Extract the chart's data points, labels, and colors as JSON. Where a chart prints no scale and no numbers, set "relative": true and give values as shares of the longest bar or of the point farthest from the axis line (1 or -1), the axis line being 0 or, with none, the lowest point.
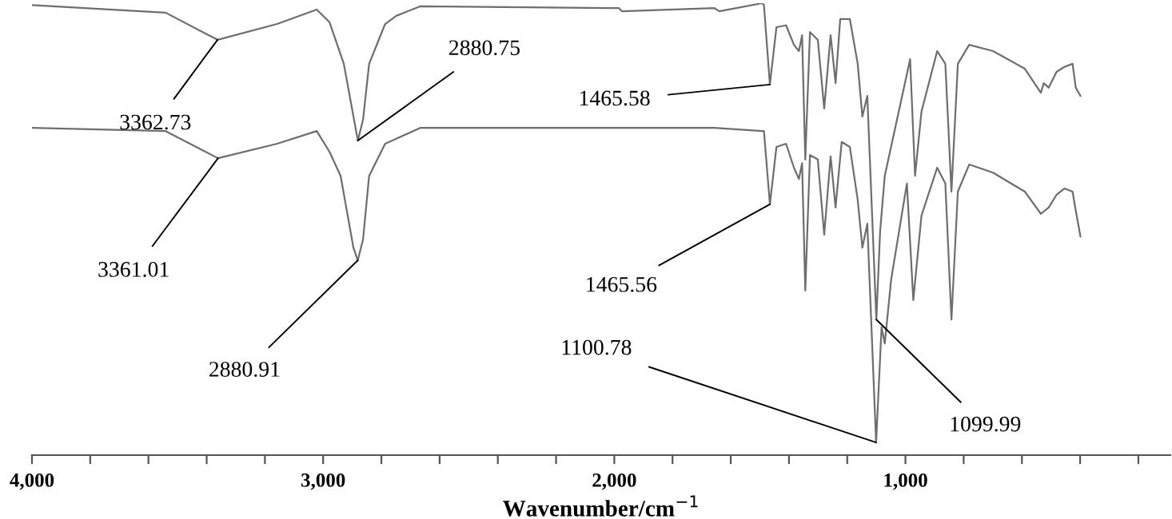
{
  "chart_data": {
    "type": "line",
    "relative": true,
    "xlabel": "Wavenumber/cm$^{−1}$",
    "x": [
      4000,
      3541,
      3362.73,
      3158,
      3022,
      2978,
      2929,
      2880.75,
      2863,
      2842,
      2787,
      2749,
      2667,
      1984,
      1973,
      1656,
      1639,
      1492,
      1486,
      1465.58,
      1443,
      1410,
      1383,
      1366,
      1355,
      1344,
      1328,
      1301,
      1279,
      1257,
      1240,
      1224,
      1191,
      1164,
      1148,
      1131,
      1099.99,
      1087,
      1071,
      984,
      967,
      945,
      891,
      863,
      842,
      820,
      781,
      699,
      590,
      535,
      525,
      508,
      481,
      454,
      426,
      415,
      399
    ],
    "series": [
      {
        "color": "#6e6e6e",
        "values": [
          0.996,
          0.979,
          0.919,
          0.954,
          0.986,
          0.958,
          0.866,
          0.696,
          0.742,
          0.866,
          0.954,
          0.972,
          0.993,
          0.989,
          0.982,
          0.989,
          0.982,
          1.0,
          0.996,
          0.82,
          0.947,
          0.951,
          0.908,
          0.894,
          0.929,
          0.654,
          0.936,
          0.919,
          0.767,
          0.929,
          0.823,
          0.965,
          0.965,
          0.866,
          0.749,
          0.795,
          0.3,
          0.495,
          0.618,
          0.876,
          0.618,
          0.76,
          0.894,
          0.866,
          0.583,
          0.866,
          0.908,
          0.894,
          0.855,
          0.802,
          0.823,
          0.813,
          0.848,
          0.859,
          0.866,
          0.813,
          0.795
        ]
      },
      {
        "color": "#6e6e6e",
        "x": [
          4000,
          3541,
          3361.01,
          3158,
          3022,
          2978,
          2940,
          2896,
          2880.91,
          2863,
          2842,
          2787,
          2749,
          2667,
          1984,
          1656,
          1492,
          1486,
          1465.56,
          1443,
          1410,
          1383,
          1366,
          1355,
          1344,
          1328,
          1301,
          1279,
          1257,
          1240,
          1219,
          1191,
          1164,
          1148,
          1131,
          1100.78,
          1082,
          1071,
          1049,
          995,
          973,
          945,
          891,
          863,
          842,
          820,
          781,
          699,
          590,
          535,
          508,
          481,
          454,
          426,
          415,
          399
        ],
        "values": [
          0.724,
          0.717,
          0.657,
          0.689,
          0.717,
          0.671,
          0.618,
          0.459,
          0.431,
          0.477,
          0.618,
          0.689,
          0.7,
          0.724,
          0.724,
          0.724,
          0.717,
          0.717,
          0.555,
          0.682,
          0.689,
          0.636,
          0.611,
          0.646,
          0.364,
          0.664,
          0.654,
          0.488,
          0.661,
          0.548,
          0.693,
          0.682,
          0.565,
          0.459,
          0.512,
          0.028,
          0.283,
          0.247,
          0.389,
          0.601,
          0.343,
          0.53,
          0.636,
          0.601,
          0.3,
          0.583,
          0.643,
          0.625,
          0.583,
          0.534,
          0.548,
          0.576,
          0.59,
          0.583,
          0.541,
          0.484
        ]
      }
    ],
    "xlim": [
      4000,
      90
    ],
    "xticks": [
      {
        "value": 4000,
        "label": "4,000"
      },
      {
        "value": 3800,
        "label": null
      },
      {
        "value": 3600,
        "label": null
      },
      {
        "value": 3400,
        "label": null
      },
      {
        "value": 3200,
        "label": null
      },
      {
        "value": 3000,
        "label": "3,000"
      },
      {
        "value": 2800,
        "label": null
      },
      {
        "value": 2600,
        "label": null
      },
      {
        "value": 2400,
        "label": null
      },
      {
        "value": 2200,
        "label": null
      },
      {
        "value": 2000,
        "label": "2,000"
      },
      {
        "value": 1800,
        "label": null
      },
      {
        "value": 1600,
        "label": null
      },
      {
        "value": 1400,
        "label": null
      },
      {
        "value": 1200,
        "label": null
      },
      {
        "value": 1000,
        "label": "1,000"
      },
      {
        "value": 800,
        "label": null
      },
      {
        "value": 600,
        "label": null
      },
      {
        "value": 400,
        "label": null
      },
      {
        "value": 200,
        "label": null
      }
    ],
    "annotations": [
      {
        "text": "3362.73",
        "x": 3362.73,
        "y": 0.919
      },
      {
        "text": "2880.75",
        "x": 2880.75,
        "y": 0.696
      },
      {
        "text": "1465.58",
        "x": 1465.58,
        "y": 0.82
      },
      {
        "text": "3361.01",
        "x": 3361.01,
        "y": 0.657
      },
      {
        "text": "2880.91",
        "x": 2880.91,
        "y": 0.431
      },
      {
        "text": "1465.56",
        "x": 1465.56,
        "y": 0.555
      },
      {
        "text": "1100.78",
        "x": 1100.78,
        "y": 0.028
      },
      {
        "text": "1099.99",
        "x": 1099.99,
        "y": 0.3
      }
    ],
    "grid": false,
    "legend": false
  }
}
